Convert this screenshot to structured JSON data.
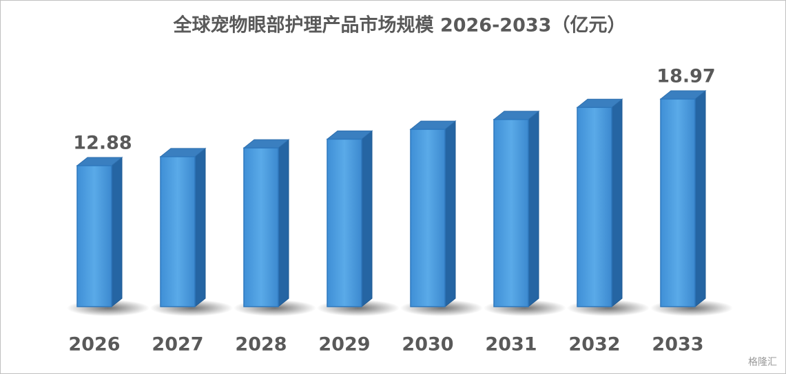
{
  "chart_data": {
    "type": "bar3d",
    "title": "全球宠物眼部护理产品市场规模 2026-2033（亿元）",
    "categories": [
      "2026",
      "2027",
      "2028",
      "2029",
      "2030",
      "2031",
      "2032",
      "2033"
    ],
    "values": [
      12.88,
      13.7,
      14.5,
      15.3,
      16.2,
      17.1,
      18.2,
      18.97
    ],
    "color": "#4a9de0",
    "watermark": "格隆汇"
  }
}
